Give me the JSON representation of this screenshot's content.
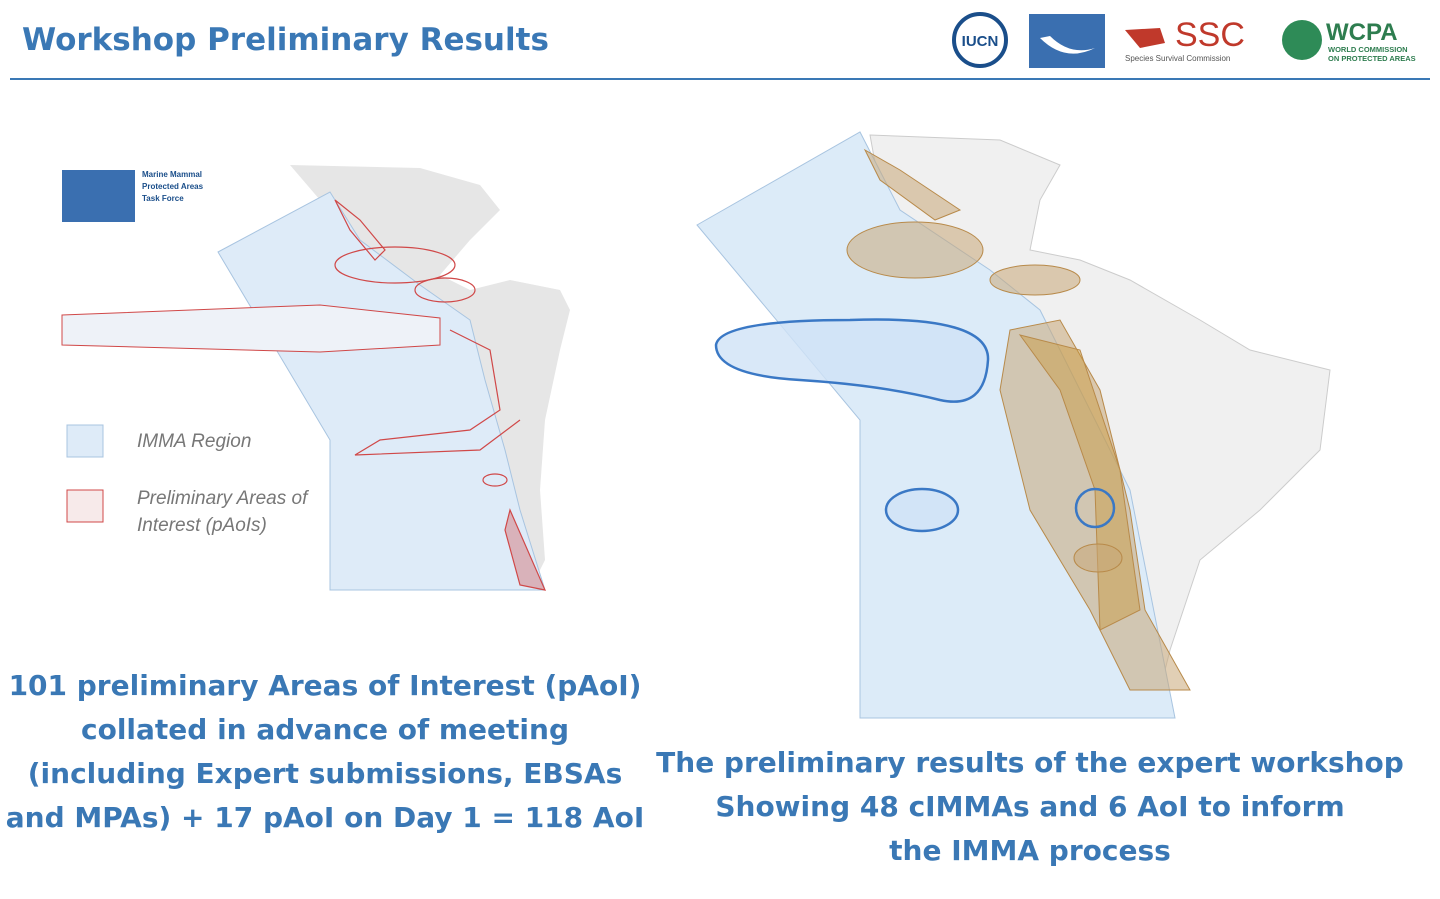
{
  "header": {
    "title": "Workshop Preliminary Results",
    "logos": {
      "iucn": "IUCN",
      "ssc": "SSC",
      "ssc_sub": "Species Survival Commission",
      "wcpa": "WCPA",
      "wcpa_sub": [
        "WORLD COMMISSION",
        "ON PROTECTED AREAS"
      ]
    }
  },
  "left_map": {
    "badge": [
      "Marine Mammal",
      "Protected Areas",
      "Task Force"
    ],
    "legend": [
      {
        "label": "IMMA Region"
      },
      {
        "label": [
          "Preliminary Areas of",
          "Interest (pAoIs)"
        ]
      }
    ],
    "caption": [
      "101 preliminary Areas of Interest (pAoI)",
      "collated in advance of meeting",
      "(including Expert submissions, EBSAs",
      "and MPAs) + 17 pAoI on Day 1 = 118 AoI"
    ]
  },
  "right_map": {
    "caption": [
      "The preliminary results of the expert workshop",
      "Showing 48 cIMMAs and 6 AoI to inform",
      "the IMMA process"
    ]
  }
}
